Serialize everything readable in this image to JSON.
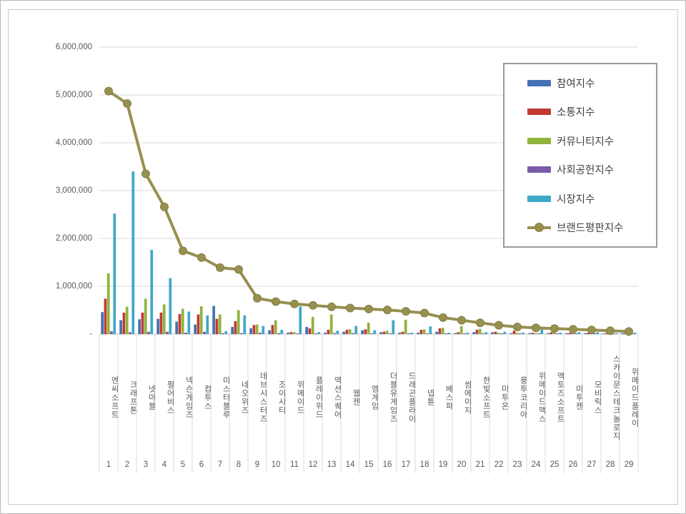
{
  "chart_data": {
    "type": "bar",
    "subtype": "grouped-bars-with-line-overlay",
    "title": "",
    "categories": [
      "엔씨소프트",
      "크래프톤",
      "넷마블",
      "펄어비스",
      "넥슨게임즈",
      "컴투스",
      "미스터블루",
      "네오위즈",
      "데브시스터즈",
      "조이시티",
      "위메이드",
      "플레이위드",
      "액션스퀘어",
      "웹젠",
      "엠게임",
      "더블유게임즈",
      "드래곤플라이",
      "넵튠",
      "베스파",
      "썸에이지",
      "한빛소프트",
      "미투온",
      "룽투코리아",
      "위메이드맥스",
      "액토즈소프트",
      "미투젠",
      "모비릭스",
      "스카이문스테크놀로지",
      "위메이드플레이"
    ],
    "ranks": [
      "1",
      "2",
      "3",
      "4",
      "5",
      "6",
      "7",
      "8",
      "9",
      "10",
      "11",
      "12",
      "13",
      "14",
      "15",
      "16",
      "17",
      "18",
      "19",
      "20",
      "21",
      "22",
      "23",
      "24",
      "25",
      "26",
      "27",
      "28",
      "29"
    ],
    "series": [
      {
        "name": "참여지수",
        "type": "bar",
        "color": "#4472b4",
        "values": [
          460000,
          290000,
          310000,
          320000,
          260000,
          200000,
          590000,
          150000,
          120000,
          80000,
          30000,
          150000,
          30000,
          50000,
          80000,
          40000,
          30000,
          30000,
          50000,
          20000,
          40000,
          40000,
          20000,
          20000,
          20000,
          20000,
          20000,
          10000,
          20000
        ]
      },
      {
        "name": "소통지수",
        "type": "bar",
        "color": "#c03a32",
        "values": [
          740000,
          450000,
          450000,
          450000,
          420000,
          410000,
          320000,
          270000,
          190000,
          190000,
          40000,
          120000,
          90000,
          90000,
          100000,
          50000,
          50000,
          90000,
          120000,
          40000,
          90000,
          50000,
          70000,
          30000,
          40000,
          30000,
          30000,
          30000,
          30000
        ]
      },
      {
        "name": "커뮤니티지수",
        "type": "bar",
        "color": "#8fb33d",
        "values": [
          1270000,
          570000,
          740000,
          620000,
          530000,
          580000,
          410000,
          500000,
          200000,
          290000,
          40000,
          360000,
          410000,
          100000,
          240000,
          70000,
          300000,
          100000,
          130000,
          170000,
          110000,
          30000,
          30000,
          20000,
          30000,
          20000,
          20000,
          20000,
          20000
        ]
      },
      {
        "name": "사회공헌지수",
        "type": "bar",
        "color": "#7a5ba6",
        "values": [
          60000,
          40000,
          50000,
          50000,
          30000,
          50000,
          20000,
          20000,
          30000,
          20000,
          10000,
          10000,
          20000,
          20000,
          10000,
          10000,
          10000,
          10000,
          10000,
          10000,
          10000,
          10000,
          10000,
          10000,
          10000,
          10000,
          10000,
          10000,
          10000
        ]
      },
      {
        "name": "시장지수",
        "type": "bar",
        "color": "#3fa8c8",
        "values": [
          2520000,
          3400000,
          1760000,
          1170000,
          470000,
          390000,
          60000,
          390000,
          170000,
          90000,
          580000,
          40000,
          70000,
          170000,
          80000,
          290000,
          30000,
          160000,
          30000,
          30000,
          40000,
          50000,
          30000,
          110000,
          30000,
          40000,
          40000,
          20000,
          30000
        ]
      },
      {
        "name": "브랜드평판지수",
        "type": "line",
        "color": "#97904f",
        "marker_stroke": "#877e45",
        "values": [
          5080000,
          4820000,
          3350000,
          2660000,
          1740000,
          1600000,
          1390000,
          1350000,
          750000,
          680000,
          630000,
          600000,
          570000,
          545000,
          525000,
          505000,
          475000,
          440000,
          345000,
          290000,
          235000,
          185000,
          150000,
          130000,
          115000,
          100000,
          85000,
          70000,
          55000
        ]
      }
    ],
    "y_axis": {
      "min": 0,
      "max": 6000000,
      "tick_step": 1000000,
      "tick_labels_top_to_bottom": [
        "6,000,000",
        "5,000,000",
        "4,000,000",
        "3,000,000",
        "2,000,000",
        "1,000,000",
        "-"
      ]
    },
    "x_axis": {
      "label_orientation": "vertical",
      "rank_row": true
    },
    "legend": {
      "position": "top-right",
      "entries": [
        "참여지수",
        "소통지수",
        "커뮤니티지수",
        "사회공헌지수",
        "시장지수",
        "브랜드평판지수"
      ]
    },
    "grid": true,
    "colors": {
      "gridline": "#d9d9d9",
      "axis_line": "#bfbfbf",
      "tick_text": "#595959",
      "legend_border": "#9b9b9b",
      "frame_border": "#c9c9c9"
    }
  }
}
